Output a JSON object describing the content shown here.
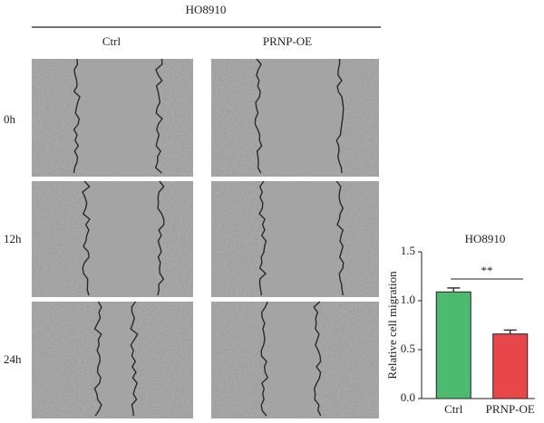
{
  "figure": {
    "title": "HO8910",
    "columns": [
      "Ctrl",
      "PRNP-OE"
    ],
    "rows": [
      "0h",
      "12h",
      "24h"
    ]
  },
  "chart_data": {
    "type": "bar",
    "title": "HO8910",
    "y_label": "Relative cell migration",
    "categories": [
      "Ctrl",
      "PRNP-OE"
    ],
    "values": [
      1.09,
      0.66
    ],
    "errors": [
      0.04,
      0.04
    ],
    "colors": [
      "#4dbb6f",
      "#e8474a"
    ],
    "significance": "**",
    "ylim": [
      0,
      1.5
    ],
    "yticks": [
      {
        "value": 0,
        "label": "0.0"
      },
      0.5,
      {
        "value": 1,
        "label": "1.0"
      },
      1.5
    ]
  }
}
